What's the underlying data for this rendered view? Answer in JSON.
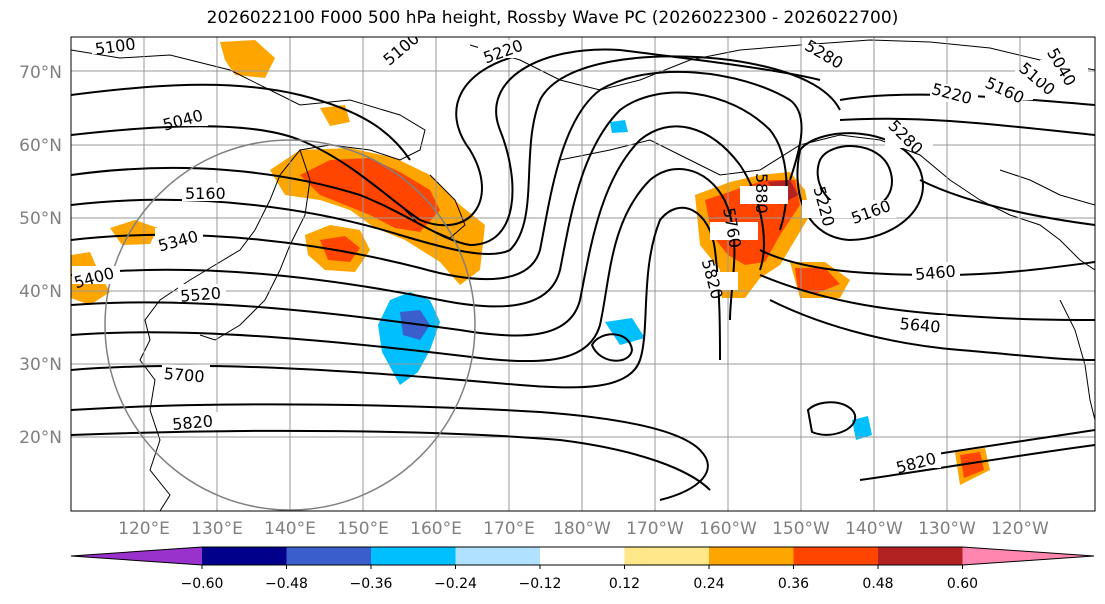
{
  "title": "2026022100 F000 500 hPa height, Rossby Wave PC (2026022300 - 2026022700)",
  "lat_labels": [
    "70°N",
    "60°N",
    "50°N",
    "40°N",
    "30°N",
    "20°N"
  ],
  "lon_labels": [
    "120°E",
    "130°E",
    "140°E",
    "150°E",
    "160°E",
    "170°E",
    "180°W",
    "170°W",
    "160°W",
    "150°W",
    "140°W",
    "130°W",
    "120°W"
  ],
  "contour_labels": [
    "5100",
    "5100",
    "5220",
    "5280",
    "5040",
    "5220",
    "5160",
    "5100",
    "5040",
    "5280",
    "5160",
    "5220",
    "5160",
    "5340",
    "5880",
    "5760",
    "5820",
    "5400",
    "5520",
    "5460",
    "5640",
    "5700",
    "5820",
    "5820"
  ],
  "colorbar": {
    "ticks": [
      "−0.60",
      "−0.48",
      "−0.36",
      "−0.24",
      "−0.12",
      "0.12",
      "0.24",
      "0.36",
      "0.48",
      "0.60"
    ],
    "colors": [
      "#9932CC",
      "#00008B",
      "#3A5FCD",
      "#00BFFF",
      "#B0E2FF",
      "#FFFFFF",
      "#FFE78A",
      "#FFA500",
      "#FF4500",
      "#B22222",
      "#FF86AE"
    ]
  }
}
